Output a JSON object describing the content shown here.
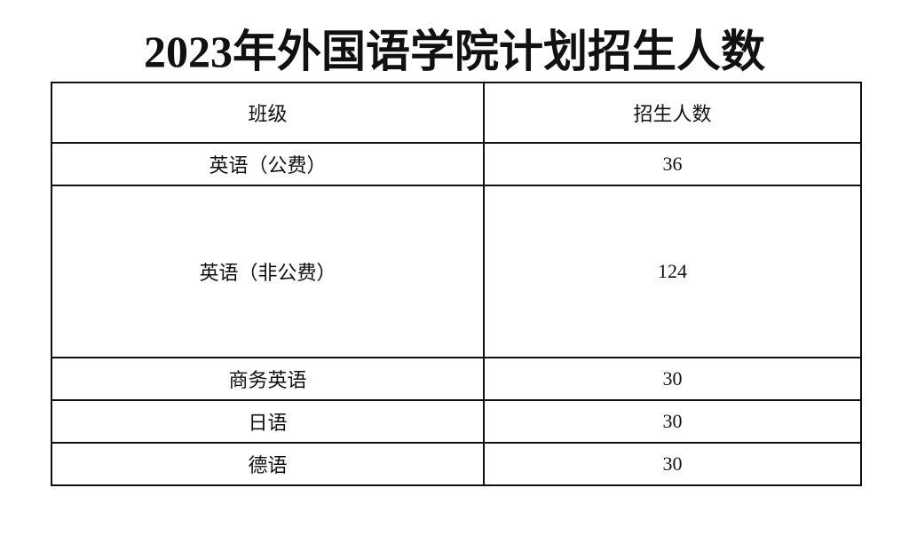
{
  "title": "2023年外国语学院计划招生人数",
  "table": {
    "headers": [
      "班级",
      "招生人数"
    ],
    "rows": [
      {
        "class": "英语（公费）",
        "count": "36"
      },
      {
        "class": "英语（非公费）",
        "count": "124"
      },
      {
        "class": "商务英语",
        "count": "30"
      },
      {
        "class": "日语",
        "count": "30"
      },
      {
        "class": "德语",
        "count": "30"
      }
    ]
  }
}
